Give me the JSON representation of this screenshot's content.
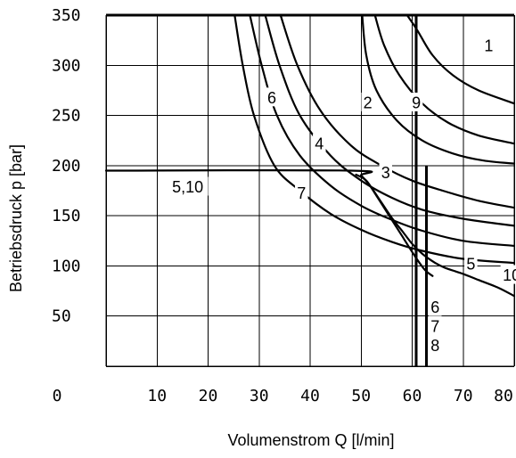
{
  "chart_data": {
    "type": "line",
    "title": "",
    "xlabel": "Volumenstrom Q [l/min]",
    "ylabel": "Betriebsdruck p [bar]",
    "xlim": [
      0,
      80
    ],
    "ylim": [
      0,
      350
    ],
    "grid": true,
    "legend": "none",
    "x_ticks": [
      {
        "value": 0,
        "label": "0"
      },
      {
        "value": 10,
        "label": "10"
      },
      {
        "value": 20,
        "label": "20"
      },
      {
        "value": 30,
        "label": "30"
      },
      {
        "value": 40,
        "label": "40"
      },
      {
        "value": 50,
        "label": "50"
      },
      {
        "value": 60,
        "label": "60"
      },
      {
        "value": 70,
        "label": "70"
      },
      {
        "value": 80,
        "label": "80"
      }
    ],
    "y_ticks": [
      {
        "value": 50,
        "label": "50"
      },
      {
        "value": 100,
        "label": "100"
      },
      {
        "value": 150,
        "label": "150"
      },
      {
        "value": 200,
        "label": "200"
      },
      {
        "value": 250,
        "label": "250"
      },
      {
        "value": 300,
        "label": "300"
      },
      {
        "value": 350,
        "label": "350"
      }
    ],
    "series": [
      {
        "id": "curve-a",
        "points": [
          [
            25.2,
            350
          ],
          [
            26.8,
            300
          ],
          [
            29,
            250
          ],
          [
            33,
            200
          ],
          [
            38,
            175
          ],
          [
            44,
            152
          ],
          [
            50,
            136
          ],
          [
            56,
            124
          ],
          [
            62,
            115
          ],
          [
            70,
            107
          ],
          [
            80,
            103
          ]
        ]
      },
      {
        "id": "curve-b",
        "points": [
          [
            28.2,
            350
          ],
          [
            30.5,
            300
          ],
          [
            33.5,
            250
          ],
          [
            38,
            210
          ],
          [
            44,
            180
          ],
          [
            50,
            160
          ],
          [
            56,
            146
          ],
          [
            62,
            135
          ],
          [
            70,
            125
          ],
          [
            80,
            120
          ]
        ]
      },
      {
        "id": "curve-c",
        "points": [
          [
            31.2,
            350
          ],
          [
            34,
            300
          ],
          [
            38,
            250
          ],
          [
            44,
            210
          ],
          [
            50,
            185
          ],
          [
            56,
            168
          ],
          [
            62,
            156
          ],
          [
            70,
            147
          ],
          [
            80,
            140
          ]
        ]
      },
      {
        "id": "curve-d",
        "points": [
          [
            34.2,
            350
          ],
          [
            37.5,
            300
          ],
          [
            42,
            255
          ],
          [
            48,
            220
          ],
          [
            54,
            200
          ],
          [
            60,
            185
          ],
          [
            66,
            175
          ],
          [
            73,
            165
          ],
          [
            80,
            158
          ]
        ]
      },
      {
        "id": "curve-e",
        "points": [
          [
            50.2,
            350
          ],
          [
            51,
            310
          ],
          [
            53,
            275
          ],
          [
            57,
            245
          ],
          [
            62,
            225
          ],
          [
            68,
            212
          ],
          [
            74,
            205
          ],
          [
            80,
            202
          ]
        ]
      },
      {
        "id": "curve-f",
        "points": [
          [
            52.7,
            350
          ],
          [
            54.5,
            320
          ],
          [
            57.5,
            290
          ],
          [
            62,
            262
          ],
          [
            67,
            243
          ],
          [
            73,
            230
          ],
          [
            80,
            222
          ]
        ]
      },
      {
        "id": "curve-g",
        "points": [
          [
            59,
            350
          ],
          [
            61,
            335
          ],
          [
            64,
            310
          ],
          [
            68,
            290
          ],
          [
            73,
            275
          ],
          [
            80,
            262
          ]
        ]
      },
      {
        "id": "curve-h",
        "points": [
          [
            0,
            195
          ],
          [
            48,
            195
          ],
          [
            50,
            190
          ],
          [
            52,
            178
          ],
          [
            54,
            163
          ],
          [
            56,
            148
          ],
          [
            58,
            135
          ],
          [
            60,
            122
          ],
          [
            62,
            112
          ],
          [
            64.5,
            103
          ],
          [
            66.5,
            98
          ],
          [
            70,
            92
          ],
          [
            73,
            86
          ],
          [
            77,
            78
          ],
          [
            80,
            70
          ]
        ]
      },
      {
        "id": "curve-i",
        "points": [
          [
            49,
            191
          ],
          [
            51,
            185
          ],
          [
            53,
            170
          ],
          [
            55.5,
            150
          ],
          [
            58,
            130
          ],
          [
            60.5,
            110
          ],
          [
            62.5,
            96
          ],
          [
            64,
            90
          ]
        ]
      }
    ],
    "limits": [
      {
        "id": "limit-top",
        "orientation": "horizontal",
        "value": 350,
        "from": 0,
        "to": 80
      },
      {
        "id": "limit-q62",
        "orientation": "vertical",
        "value": 60.8,
        "from": 0,
        "to": 350
      },
      {
        "id": "limit-q64",
        "orientation": "vertical",
        "value": 62.8,
        "from": 0,
        "to": 200
      }
    ],
    "annotations": [
      {
        "text": "1",
        "x": 75,
        "y": 320
      },
      {
        "text": "2",
        "x": 51.3,
        "y": 263
      },
      {
        "text": "9",
        "x": 60.8,
        "y": 263
      },
      {
        "text": "6",
        "x": 32.5,
        "y": 268
      },
      {
        "text": "4",
        "x": 41.8,
        "y": 222
      },
      {
        "text": "3",
        "x": 54.8,
        "y": 193
      },
      {
        "text": "7",
        "x": 38.3,
        "y": 173
      },
      {
        "text": "5,10",
        "x": 16,
        "y": 179
      },
      {
        "text": "5",
        "x": 71.5,
        "y": 102
      },
      {
        "text": "10",
        "x": 79.5,
        "y": 91
      },
      {
        "text": "6",
        "x": 64.5,
        "y": 59
      },
      {
        "text": "7",
        "x": 64.5,
        "y": 40
      },
      {
        "text": "8",
        "x": 64.5,
        "y": 21
      }
    ]
  }
}
